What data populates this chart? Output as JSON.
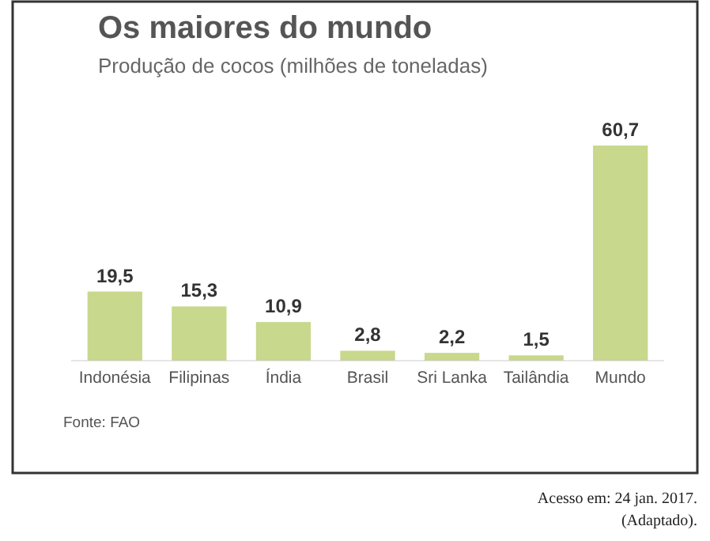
{
  "chart_data": {
    "type": "bar",
    "title": "Os maiores do mundo",
    "subtitle": "Produção de cocos (milhões de toneladas)",
    "categories": [
      "Indonésia",
      "Filipinas",
      "Índia",
      "Brasil",
      "Sri Lanka",
      "Tailândia",
      "Mundo"
    ],
    "values": [
      19.5,
      15.3,
      10.9,
      2.8,
      2.2,
      1.5,
      60.7
    ],
    "color": "#c8d88c",
    "value_labels": [
      "19,5",
      "15,3",
      "10,9",
      "2,8",
      "2,2",
      "1,5",
      "60,7"
    ],
    "annotations": [
      "Fonte: FAO",
      "Acesso em: 24 jan. 2017.",
      "(Adaptado)."
    ]
  }
}
